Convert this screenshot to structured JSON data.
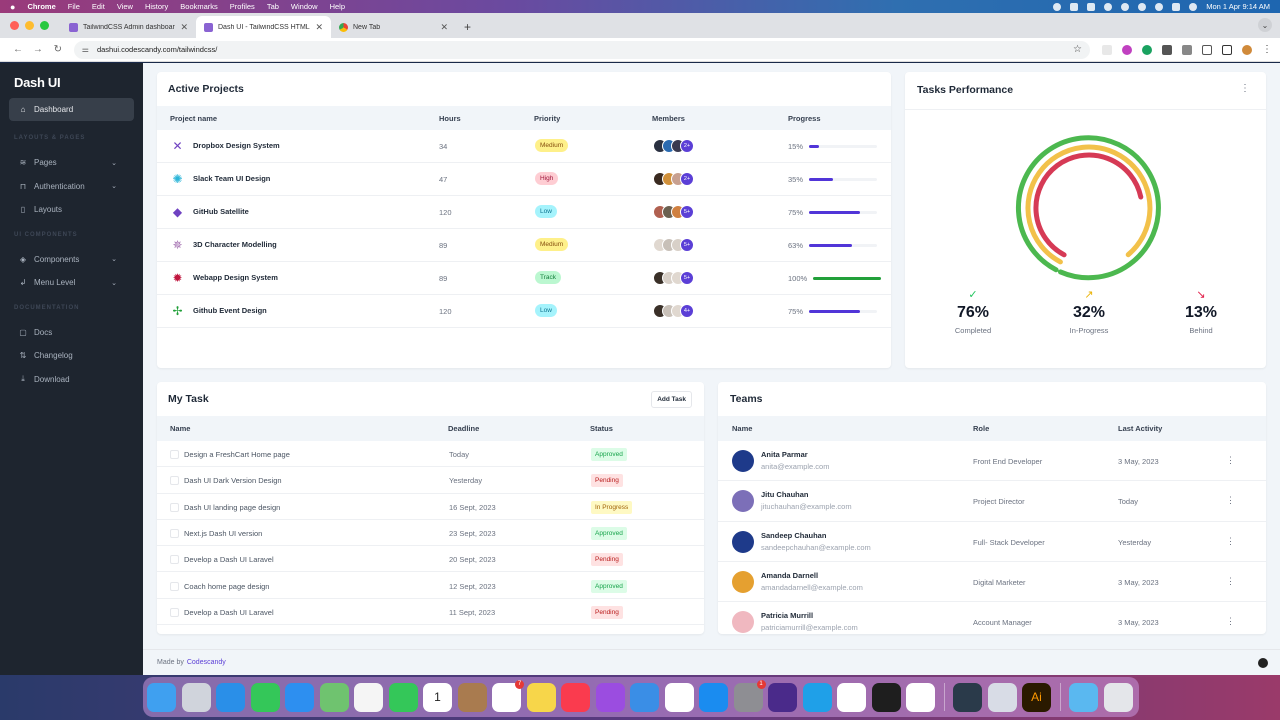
{
  "os_menubar": {
    "app_name": "Chrome",
    "menus": [
      "File",
      "Edit",
      "View",
      "History",
      "Bookmarks",
      "Profiles",
      "Tab",
      "Window",
      "Help"
    ],
    "clock": "Mon 1 Apr  9:14 AM"
  },
  "browser": {
    "tabs": [
      {
        "label": "TailwindCSS Admin dashboard",
        "active": false
      },
      {
        "label": "Dash UI - TailwindCSS HTML",
        "active": true
      },
      {
        "label": "New Tab",
        "active": false
      }
    ],
    "new_tab_label": "+",
    "url": "dashui.codescandy.com/tailwindcss/"
  },
  "sidebar": {
    "brand": "Dash UI",
    "items": [
      {
        "type": "item",
        "label": "Dashboard",
        "icon": "home-icon",
        "glyph": "⌂",
        "active": true
      },
      {
        "type": "heading",
        "label": "LAYOUTS & PAGES"
      },
      {
        "type": "item",
        "label": "Pages",
        "icon": "layers-icon",
        "glyph": "≋",
        "chevron": true
      },
      {
        "type": "item",
        "label": "Authentication",
        "icon": "lock-icon",
        "glyph": "⊓",
        "chevron": true
      },
      {
        "type": "item",
        "label": "Layouts",
        "icon": "sidebar-layout-icon",
        "glyph": "▯"
      },
      {
        "type": "heading",
        "label": "UI COMPONENTS"
      },
      {
        "type": "item",
        "label": "Components",
        "icon": "package-icon",
        "glyph": "◈",
        "chevron": true
      },
      {
        "type": "item",
        "label": "Menu Level",
        "icon": "corner-arrow-icon",
        "glyph": "↲",
        "chevron": true
      },
      {
        "type": "heading",
        "label": "DOCUMENTATION"
      },
      {
        "type": "item",
        "label": "Docs",
        "icon": "clipboard-icon",
        "glyph": "▢"
      },
      {
        "type": "item",
        "label": "Changelog",
        "icon": "git-pull-icon",
        "glyph": "⇅"
      },
      {
        "type": "item",
        "label": "Download",
        "icon": "download-icon",
        "glyph": "⤓"
      }
    ]
  },
  "active_projects": {
    "title": "Active Projects",
    "columns": [
      "Project name",
      "Hours",
      "Priority",
      "Members",
      "Progress"
    ],
    "rows": [
      {
        "name": "Dropbox Design System",
        "icon_color": "#6f42c1",
        "glyph": "✕",
        "hours": "34",
        "priority": "Medium",
        "priority_bg": "#fef08a",
        "priority_fg": "#854d0e",
        "members_more": "2+",
        "progress": "15%",
        "progress_value": 15,
        "bar_color": "#5135d8"
      },
      {
        "name": "Slack Team UI Design",
        "icon_color": "#2bb5d8",
        "glyph": "✺",
        "hours": "47",
        "priority": "High",
        "priority_bg": "#fecdd3",
        "priority_fg": "#9f1239",
        "members_more": "2+",
        "progress": "35%",
        "progress_value": 35,
        "bar_color": "#5135d8"
      },
      {
        "name": "GitHub Satellite",
        "icon_color": "#6f42c1",
        "glyph": "◆",
        "hours": "120",
        "priority": "Low",
        "priority_bg": "#a5f3fc",
        "priority_fg": "#0e7490",
        "members_more": "5+",
        "progress": "75%",
        "progress_value": 75,
        "bar_color": "#5135d8"
      },
      {
        "name": "3D Character Modelling",
        "icon_color": "#a36fb0",
        "glyph": "✵",
        "hours": "89",
        "priority": "Medium",
        "priority_bg": "#fef08a",
        "priority_fg": "#854d0e",
        "members_more": "5+",
        "progress": "63%",
        "progress_value": 63,
        "bar_color": "#5135d8"
      },
      {
        "name": "Webapp Design System",
        "icon_color": "#c0163f",
        "glyph": "✹",
        "hours": "89",
        "priority": "Track",
        "priority_bg": "#bbf7d0",
        "priority_fg": "#15803d",
        "members_more": "5+",
        "progress": "100%",
        "progress_value": 100,
        "bar_color": "#22a03a"
      },
      {
        "name": "Github Event Design",
        "icon_color": "#22a03a",
        "glyph": "✢",
        "hours": "120",
        "priority": "Low",
        "priority_bg": "#a5f3fc",
        "priority_fg": "#0e7490",
        "members_more": "4+",
        "progress": "75%",
        "progress_value": 75,
        "bar_color": "#5135d8"
      }
    ]
  },
  "tasks_performance": {
    "title": "Tasks Performance",
    "menu_icon": "⋮",
    "stats": [
      {
        "value": "76%",
        "label": "Completed",
        "icon": "check-circle-icon",
        "glyph": "✓",
        "color": "#22c55e"
      },
      {
        "value": "32%",
        "label": "In-Progress",
        "icon": "trending-up-icon",
        "glyph": "↗",
        "color": "#eab308"
      },
      {
        "value": "13%",
        "label": "Behind",
        "icon": "trending-down-icon",
        "glyph": "↘",
        "color": "#e11d48"
      }
    ]
  },
  "chart_data": {
    "type": "radialBar",
    "title": "Tasks Performance",
    "categories": [
      "Completed",
      "In-Progress",
      "Behind"
    ],
    "values": [
      76,
      32,
      13
    ],
    "colors": [
      "#4cb84f",
      "#f2c14a",
      "#d63a55"
    ]
  },
  "my_task": {
    "title": "My Task",
    "add_button": "Add Task",
    "columns": [
      "Name",
      "Deadline",
      "Status"
    ],
    "rows": [
      {
        "name": "Design a FreshCart Home page",
        "deadline": "Today",
        "status": "Approved",
        "bg": "#dcfce7",
        "fg": "#16a34a"
      },
      {
        "name": "Dash UI Dark Version Design",
        "deadline": "Yesterday",
        "status": "Pending",
        "bg": "#fee2e2",
        "fg": "#b91c1c"
      },
      {
        "name": "Dash UI landing page design",
        "deadline": "16 Sept, 2023",
        "status": "In Progress",
        "bg": "#fef9c3",
        "fg": "#a16207"
      },
      {
        "name": "Next.js Dash UI version",
        "deadline": "23 Sept, 2023",
        "status": "Approved",
        "bg": "#dcfce7",
        "fg": "#16a34a"
      },
      {
        "name": "Develop a Dash UI Laravel",
        "deadline": "20 Sept, 2023",
        "status": "Pending",
        "bg": "#fee2e2",
        "fg": "#b91c1c"
      },
      {
        "name": "Coach home page design",
        "deadline": "12 Sept, 2023",
        "status": "Approved",
        "bg": "#dcfce7",
        "fg": "#16a34a"
      },
      {
        "name": "Develop a Dash UI Laravel",
        "deadline": "11 Sept, 2023",
        "status": "Pending",
        "bg": "#fee2e2",
        "fg": "#b91c1c"
      }
    ]
  },
  "teams": {
    "title": "Teams",
    "columns": [
      "Name",
      "Role",
      "Last Activity"
    ],
    "rows": [
      {
        "name": "Anita Parmar",
        "email": "anita@example.com",
        "role": "Front End Developer",
        "last_activity": "3 May, 2023",
        "avatar": "#1e3a8a"
      },
      {
        "name": "Jitu Chauhan",
        "email": "jituchauhan@example.com",
        "role": "Project Director",
        "last_activity": "Today",
        "avatar": "#7c6fb8"
      },
      {
        "name": "Sandeep Chauhan",
        "email": "sandeepchauhan@example.com",
        "role": "Full- Stack Developer",
        "last_activity": "Yesterday",
        "avatar": "#1e3a8a"
      },
      {
        "name": "Amanda Darnell",
        "email": "amandadarnell@example.com",
        "role": "Digital Marketer",
        "last_activity": "3 May, 2023",
        "avatar": "#e5a030"
      },
      {
        "name": "Patricia Murrill",
        "email": "patriciamurrill@example.com",
        "role": "Account Manager",
        "last_activity": "3 May, 2023",
        "avatar": "#f0b8c0"
      }
    ]
  },
  "footer": {
    "made_by": "Made by",
    "link": "Codescandy"
  },
  "dock": {
    "apps": [
      {
        "name": "Finder",
        "color": "#3fa0f0"
      },
      {
        "name": "Launchpad",
        "color": "#d0d4dc"
      },
      {
        "name": "Safari",
        "color": "#2a8fe8"
      },
      {
        "name": "Messages",
        "color": "#34c759"
      },
      {
        "name": "Mail",
        "color": "#2d8ff0"
      },
      {
        "name": "Maps",
        "color": "#6fc36f"
      },
      {
        "name": "Photos",
        "color": "#f5f5f5"
      },
      {
        "name": "FaceTime",
        "color": "#34c759"
      },
      {
        "name": "Calendar",
        "color": "#ffffff",
        "text": "1"
      },
      {
        "name": "Contacts",
        "color": "#a97b4f"
      },
      {
        "name": "Reminders",
        "color": "#ffffff",
        "badge": "7"
      },
      {
        "name": "Notes",
        "color": "#f7d64a"
      },
      {
        "name": "Music",
        "color": "#fa3b4e"
      },
      {
        "name": "Podcasts",
        "color": "#9b4de0"
      },
      {
        "name": "Keynote",
        "color": "#3a8ee6"
      },
      {
        "name": "Numbers",
        "color": "#ffffff"
      },
      {
        "name": "App Store",
        "color": "#1a8cf0"
      },
      {
        "name": "System Settings",
        "color": "#8e8e93",
        "badge": "1"
      },
      {
        "name": "Firefox",
        "color": "#4a2a8a"
      },
      {
        "name": "Skype",
        "color": "#1fa0e8"
      },
      {
        "name": "Chrome",
        "color": "#ffffff"
      },
      {
        "name": "Figma",
        "color": "#1e1e1e"
      },
      {
        "name": "VS Code",
        "color": "#ffffff"
      },
      {
        "name": "sep"
      },
      {
        "name": "QuickTime",
        "color": "#2a3a4a"
      },
      {
        "name": "Preview",
        "color": "#d8dce6"
      },
      {
        "name": "Illustrator",
        "color": "#2a1a00",
        "text": "Ai"
      },
      {
        "name": "sep"
      },
      {
        "name": "Downloads",
        "color": "#5ab8f0"
      },
      {
        "name": "Trash",
        "color": "#e4e6ea"
      }
    ]
  }
}
